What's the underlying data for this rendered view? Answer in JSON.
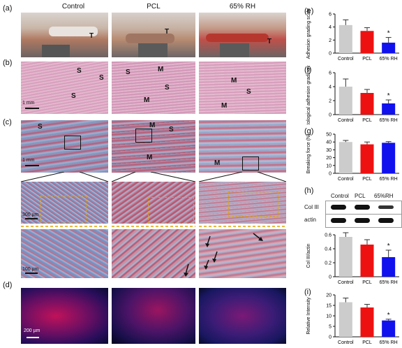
{
  "figure": {
    "columns": [
      "Control",
      "PCL",
      "65% RH"
    ],
    "panel_labels": {
      "a": "(a)",
      "b": "(b)",
      "c": "(c)",
      "d": "(d)",
      "e": "(e)",
      "f": "(f)",
      "g": "(g)",
      "h": "(h)",
      "i": "(i)"
    },
    "photo_labels": {
      "control_t": "T",
      "pcl_t": "T",
      "rh_t": "T"
    },
    "he_labels": {
      "control": [
        "S",
        "S",
        "S"
      ],
      "pcl": [
        "S",
        "M",
        "S",
        "M"
      ],
      "rh": [
        "M",
        "S",
        "M"
      ]
    },
    "masson_labels": {
      "control": [
        "S"
      ],
      "pcl": [
        "M",
        "S",
        "M"
      ],
      "rh": [
        "M"
      ]
    },
    "scale_bars": {
      "b": "1 mm",
      "c": "1 mm",
      "c2": "300 µm",
      "c3": "100 µm",
      "d": "200 µm"
    },
    "western": {
      "labels": [
        "Col III",
        "actin"
      ],
      "lanes": [
        "Control",
        "PCL",
        "65%RH"
      ]
    },
    "colors": {
      "control": "#cccccc",
      "pcl": "#ee1111",
      "rh": "#1111ee"
    }
  },
  "chart_data": [
    {
      "id": "e",
      "type": "bar",
      "categories": [
        "Control",
        "PCL",
        "65% RH"
      ],
      "values": [
        4.3,
        3.4,
        1.6
      ],
      "errors": [
        0.8,
        0.5,
        0.8
      ],
      "ylabel": "Adhesion grading scale",
      "ylim": [
        0,
        6
      ],
      "yticks": [
        0,
        2,
        4,
        6
      ],
      "significance": [
        "",
        "",
        "*"
      ]
    },
    {
      "id": "f",
      "type": "bar",
      "categories": [
        "Control",
        "PCL",
        "65% RH"
      ],
      "values": [
        4.0,
        3.1,
        1.6
      ],
      "errors": [
        1.1,
        0.5,
        0.5
      ],
      "ylabel": "Histological adhesion grading scale",
      "ylim": [
        0,
        6
      ],
      "yticks": [
        0,
        2,
        4,
        6
      ],
      "significance": [
        "",
        "",
        "*"
      ]
    },
    {
      "id": "g",
      "type": "bar",
      "categories": [
        "Control",
        "PCL",
        "65% RH"
      ],
      "values": [
        40,
        37,
        39
      ],
      "errors": [
        2,
        3,
        1.5
      ],
      "ylabel": "Breaking force (N)",
      "ylim": [
        0,
        50
      ],
      "yticks": [
        0,
        10,
        20,
        30,
        40,
        50
      ],
      "significance": [
        "",
        "",
        ""
      ]
    },
    {
      "id": "h",
      "type": "bar",
      "categories": [
        "Control",
        "PCL",
        "65% RH"
      ],
      "values": [
        0.57,
        0.46,
        0.28
      ],
      "errors": [
        0.06,
        0.07,
        0.1
      ],
      "ylabel": "Col III/actin",
      "ylim": [
        0,
        0.6
      ],
      "yticks": [
        0,
        0.2,
        0.4,
        0.6
      ],
      "significance": [
        "",
        "",
        "*"
      ]
    },
    {
      "id": "i",
      "type": "bar",
      "categories": [
        "Control",
        "PCL",
        "65% RH"
      ],
      "values": [
        16.5,
        14.0,
        7.8
      ],
      "errors": [
        2.0,
        1.5,
        0.6
      ],
      "ylabel": "Relative Intensity",
      "ylim": [
        0,
        20
      ],
      "yticks": [
        0,
        5,
        10,
        15,
        20
      ],
      "significance": [
        "",
        "",
        "*"
      ]
    }
  ]
}
